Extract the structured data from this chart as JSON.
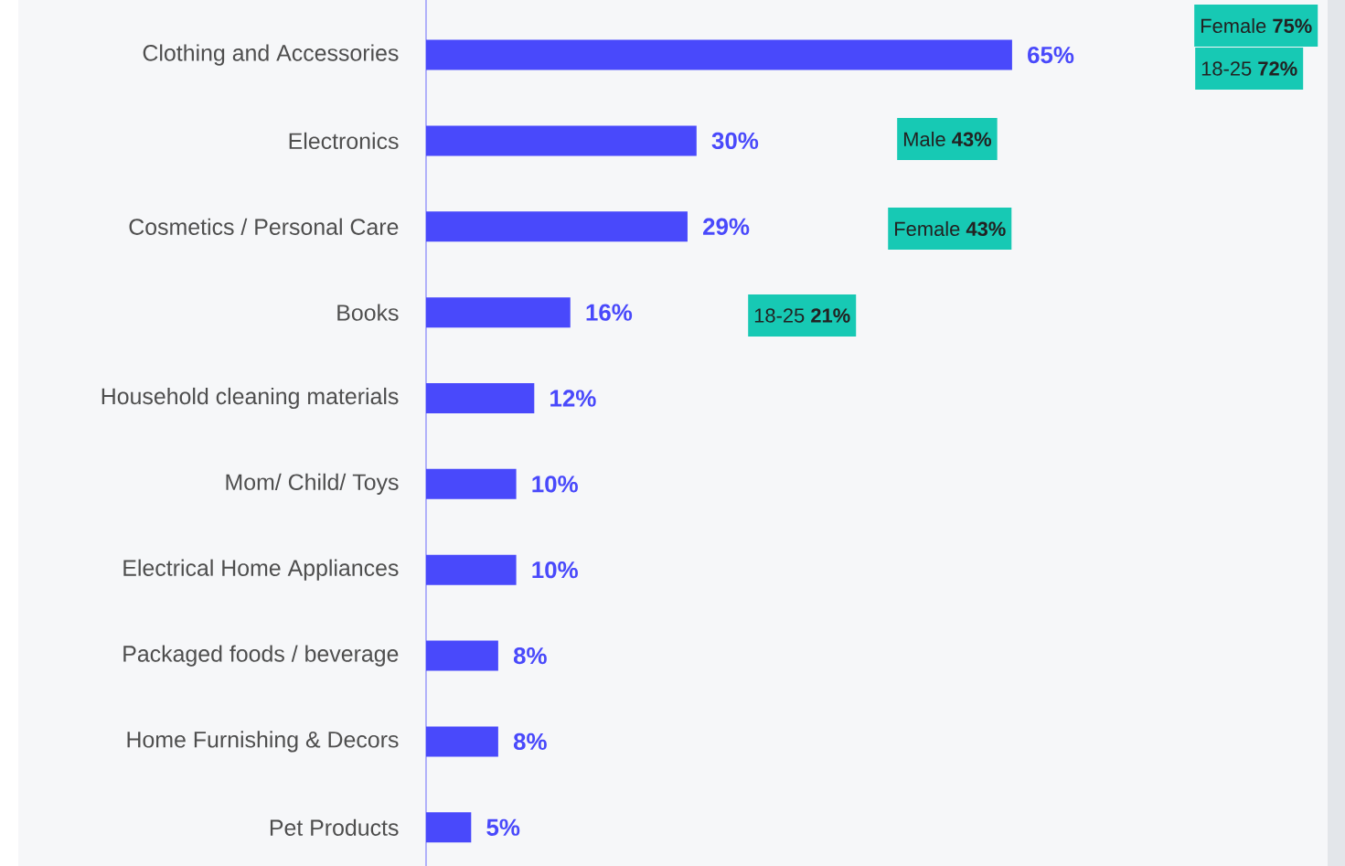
{
  "chart_data": {
    "type": "bar",
    "orientation": "horizontal",
    "categories": [
      "Clothing and Accessories",
      "Electronics",
      "Cosmetics / Personal Care",
      "Books",
      "Household cleaning materials",
      "Mom/ Child/ Toys",
      "Electrical Home Appliances",
      "Packaged foods / beverage",
      "Home Furnishing & Decors",
      "Pet Products"
    ],
    "values": [
      65,
      30,
      29,
      16,
      12,
      10,
      10,
      8,
      8,
      5
    ],
    "value_labels": [
      "65%",
      "30%",
      "29%",
      "16%",
      "12%",
      "10%",
      "10%",
      "8%",
      "8%",
      "5%"
    ],
    "color": "#4949fb",
    "xlim": [
      0,
      100
    ],
    "tick_labels": "y",
    "annotations": [
      "Female **75%**",
      "18-25 **72%**",
      "Male **43%**",
      "Female **43%**",
      "18-25 **21%**"
    ]
  }
}
